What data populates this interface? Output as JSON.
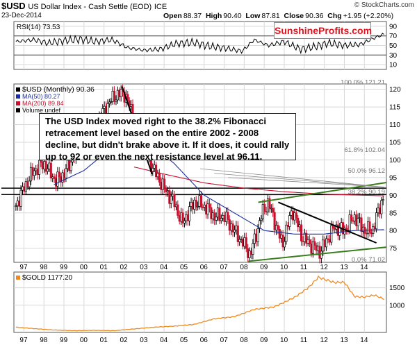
{
  "header": {
    "symbol": "$USD",
    "name": "US Dollar Index - Cash Settle (EOD)",
    "exchange": "ICE",
    "date": "23-Dec-2014",
    "open_label": "Open",
    "open": "88.37",
    "high_label": "High",
    "high": "90.40",
    "low_label": "Low",
    "low": "87.81",
    "close_label": "Close",
    "close": "90.36",
    "chg_label": "Chg",
    "chg": "+1.95 (+2.20%)",
    "credit": "© StockCharts.com"
  },
  "badge": "SunshineProfits.com",
  "annotation": "The USD Index moved right to the 38.2% Fibonacci retracement level based on the entire 2002 - 2008 decline, but didn't brake above it. If it does, it could rally up to 92 or even the next resistance level at 96.11.",
  "colors": {
    "price": "#000000",
    "up_bar": "#000000",
    "down_bar": "#c8102e",
    "ma50": "#1c2fa0",
    "ma200": "#c8102e",
    "gold": "#f0891e",
    "trend_green": "#3a7d1c",
    "grid": "#d8d8d8"
  },
  "chart_data": [
    {
      "type": "line",
      "panel": "rsi",
      "title": "RSI(14) 73.53",
      "legend": "RSI(14) 73.53",
      "yticks": [
        10,
        30,
        50,
        70,
        90
      ],
      "ylim": [
        0,
        100
      ],
      "levels": [
        30,
        70
      ],
      "x": [
        1996.6,
        1997.5,
        1998.2,
        1999.0,
        1999.8,
        2000.6,
        2001.4,
        2002.2,
        2003.0,
        2003.8,
        2004.6,
        2005.5,
        2006.3,
        2007.1,
        2007.9,
        2008.5,
        2009.2,
        2010.0,
        2010.8,
        2011.5,
        2012.2,
        2013.0,
        2013.8,
        2014.4,
        2014.98
      ],
      "values": [
        58,
        62,
        55,
        60,
        63,
        58,
        62,
        45,
        40,
        42,
        54,
        56,
        48,
        44,
        38,
        62,
        50,
        58,
        42,
        47,
        55,
        50,
        52,
        64,
        73.53
      ]
    },
    {
      "type": "bar",
      "panel": "price",
      "title": "$USD (Monthly) 90.36",
      "legend": [
        "$USD (Monthly) 90.36",
        "MA(50) 80.27",
        "MA(200) 89.84",
        "Volume undef"
      ],
      "yticks": [
        75,
        80,
        85,
        90,
        95,
        100,
        105,
        110,
        115,
        120
      ],
      "ylim": [
        71,
        121.5
      ],
      "fib_levels": [
        {
          "label": "100.0% 121.21",
          "value": 121.21
        },
        {
          "label": "61.8% 102.04",
          "value": 102.04
        },
        {
          "label": "50.0% 96.12",
          "value": 96.12
        },
        {
          "label": "38.2% 90.19",
          "value": 90.19
        },
        {
          "label": "0.0% 71.02",
          "value": 71.02
        }
      ],
      "resistance_lines": [
        92,
        90.19
      ],
      "x": [
        1996.6,
        1997.0,
        1997.5,
        1998.0,
        1998.6,
        1999.0,
        1999.5,
        2000.0,
        2000.5,
        2001.0,
        2001.5,
        2002.0,
        2002.5,
        2003.0,
        2003.5,
        2004.0,
        2004.5,
        2004.9,
        2005.5,
        2006.0,
        2006.5,
        2007.0,
        2007.5,
        2008.0,
        2008.3,
        2008.9,
        2009.2,
        2009.9,
        2010.4,
        2010.9,
        2011.3,
        2011.8,
        2012.5,
        2013.0,
        2013.5,
        2014.0,
        2014.4,
        2014.98
      ],
      "close": [
        87,
        92,
        97,
        99,
        94,
        96,
        101,
        106,
        109,
        114,
        118,
        119,
        112,
        103,
        97,
        92,
        88,
        82,
        88,
        87,
        84,
        84,
        80,
        76,
        73,
        85,
        88,
        76,
        86,
        78,
        76,
        74,
        81,
        80,
        84,
        80,
        80,
        90.36
      ],
      "ma50_x": [
        1998.5,
        2000.0,
        2001.5,
        2003.0,
        2004.5,
        2006.0,
        2007.5,
        2009.0,
        2010.5,
        2012.0,
        2013.5,
        2014.98
      ],
      "ma50": [
        93,
        97,
        104,
        106,
        99,
        90,
        85,
        80,
        79,
        79,
        80,
        80.27
      ],
      "ma200_x": [
        2002.5,
        2004.0,
        2006.0,
        2008.0,
        2010.0,
        2012.0,
        2014.98
      ],
      "ma200": [
        98,
        96,
        93.5,
        92,
        91,
        90.3,
        89.84
      ],
      "trendlines": [
        {
          "color": "black",
          "from": [
            2001.9,
            120.8
          ],
          "to": [
            2003.4,
            96
          ]
        },
        {
          "color": "black",
          "from": [
            2009.7,
            88
          ],
          "to": [
            2014.6,
            76.5
          ]
        },
        {
          "color": "green",
          "from": [
            2008.7,
            88
          ],
          "to": [
            2015.1,
            93.6
          ]
        },
        {
          "color": "green",
          "from": [
            2008.2,
            71.3
          ],
          "to": [
            2015.1,
            75.3
          ]
        }
      ]
    },
    {
      "type": "line",
      "panel": "gold",
      "title": "$GOLD 1177.20",
      "legend": "$GOLD 1177.20",
      "yticks": [
        1000,
        1500
      ],
      "ylim": [
        220,
        1950
      ],
      "x": [
        1996.6,
        1997.5,
        1998.5,
        1999.5,
        2000.5,
        2001.5,
        2002.5,
        2003.5,
        2004.5,
        2005.5,
        2006.5,
        2007.5,
        2008.5,
        2009.5,
        2010.5,
        2011.2,
        2011.7,
        2012.5,
        2013.0,
        2013.5,
        2014.0,
        2014.5,
        2014.98
      ],
      "values": [
        370,
        330,
        290,
        270,
        280,
        270,
        320,
        370,
        400,
        450,
        610,
        670,
        880,
        950,
        1220,
        1500,
        1800,
        1650,
        1660,
        1250,
        1230,
        1290,
        1177.2
      ]
    }
  ],
  "x_axis": {
    "ticks": [
      "97",
      "98",
      "99",
      "00",
      "01",
      "02",
      "03",
      "04",
      "05",
      "06",
      "07",
      "08",
      "09",
      "10",
      "11",
      "12",
      "13",
      "14"
    ],
    "tick_years": [
      1997,
      1998,
      1999,
      2000,
      2001,
      2002,
      2003,
      2004,
      2005,
      2006,
      2007,
      2008,
      2009,
      2010,
      2011,
      2012,
      2013,
      2014
    ],
    "range": [
      1996.5,
      2015.1
    ]
  }
}
